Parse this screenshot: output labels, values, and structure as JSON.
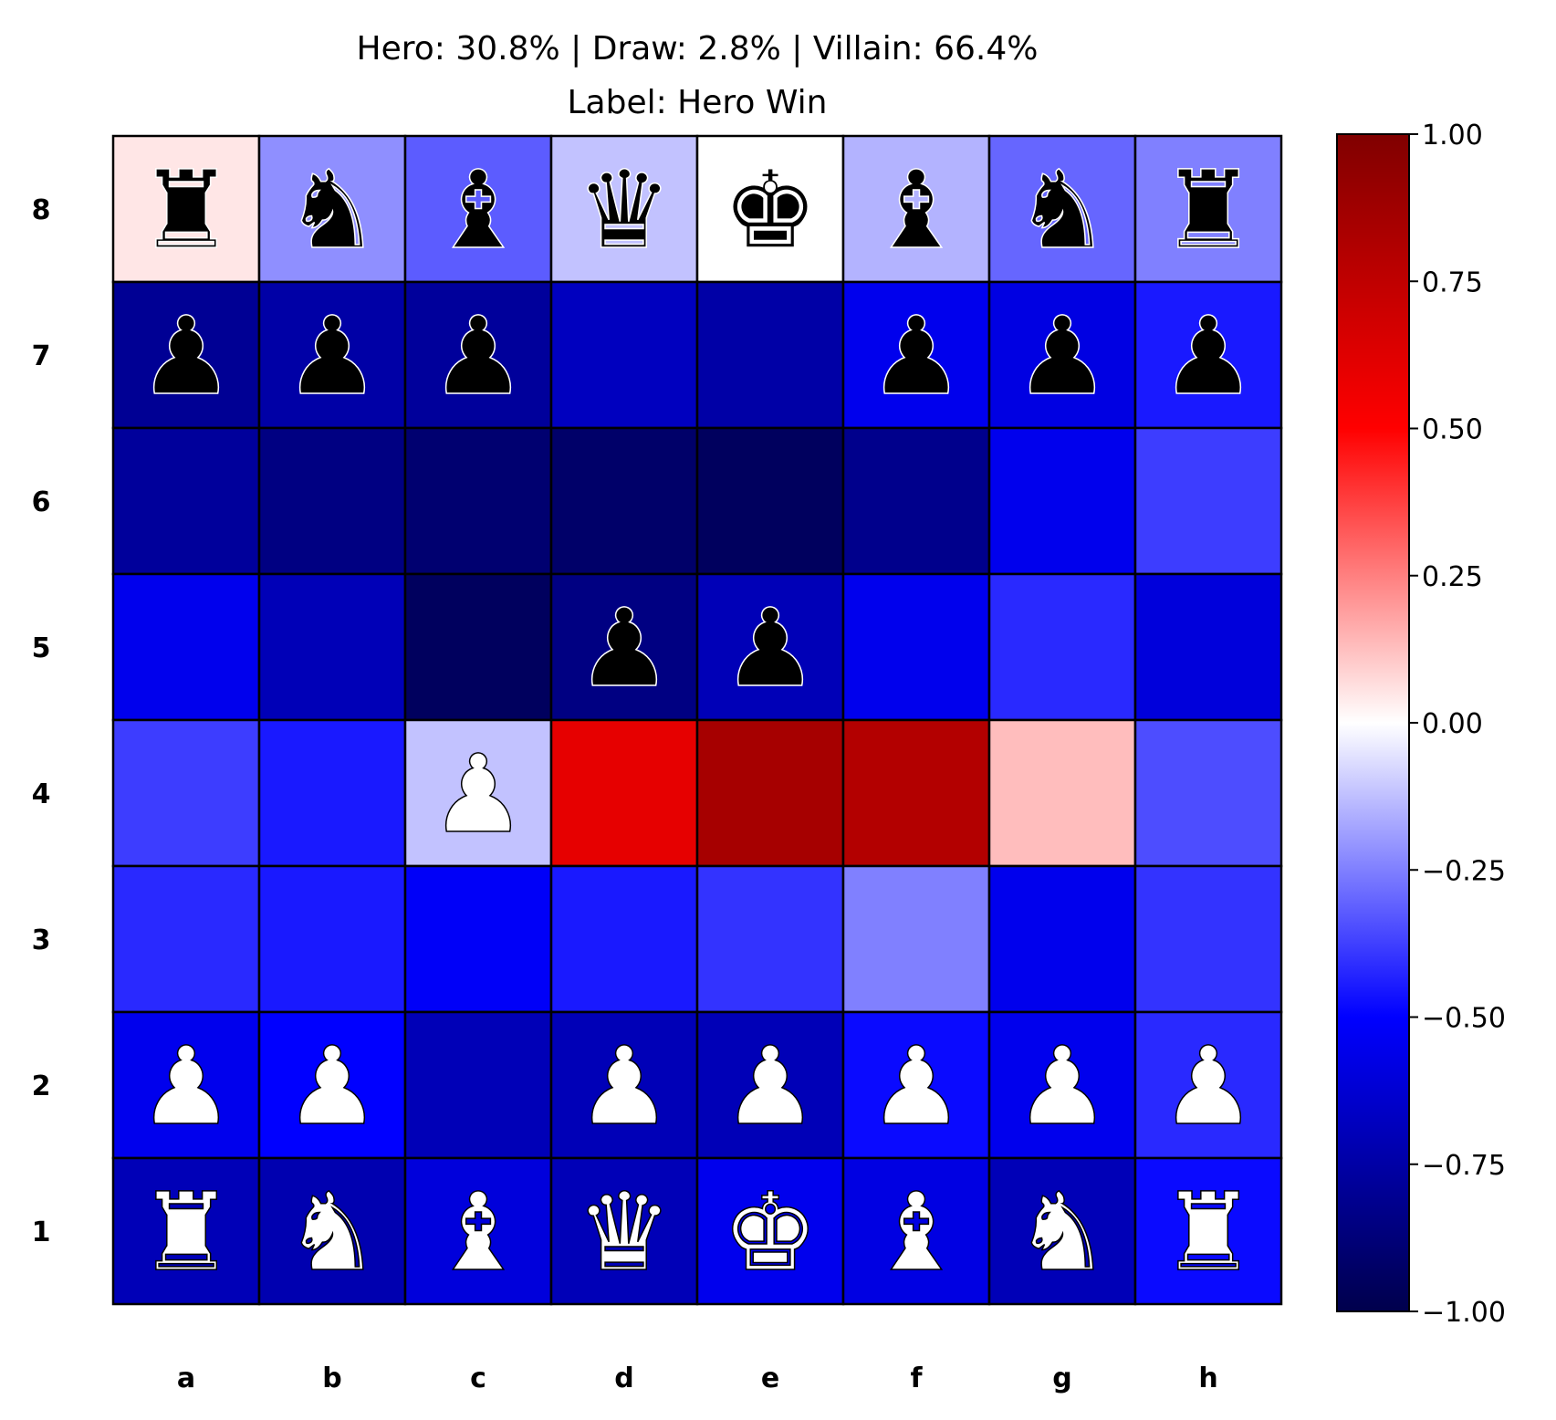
{
  "chart_data": {
    "type": "heatmap",
    "title": "Hero: 30.8% | Draw: 2.8% | Villain: 66.4%",
    "subtitle": "Label: Hero Win",
    "files": [
      "a",
      "b",
      "c",
      "d",
      "e",
      "f",
      "g",
      "h"
    ],
    "ranks": [
      "8",
      "7",
      "6",
      "5",
      "4",
      "3",
      "2",
      "1"
    ],
    "values": [
      [
        0.05,
        -0.22,
        -0.32,
        -0.12,
        0.0,
        -0.15,
        -0.3,
        -0.25
      ],
      [
        -0.8,
        -0.75,
        -0.78,
        -0.68,
        -0.75,
        -0.55,
        -0.58,
        -0.45
      ],
      [
        -0.78,
        -0.85,
        -0.9,
        -0.92,
        -0.95,
        -0.82,
        -0.55,
        -0.38
      ],
      [
        -0.55,
        -0.7,
        -0.95,
        -0.85,
        -0.7,
        -0.55,
        -0.42,
        -0.6
      ],
      [
        -0.38,
        -0.45,
        -0.12,
        0.6,
        0.85,
        0.8,
        0.13,
        -0.35
      ],
      [
        -0.42,
        -0.45,
        -0.52,
        -0.45,
        -0.4,
        -0.25,
        -0.55,
        -0.4
      ],
      [
        -0.55,
        -0.5,
        -0.7,
        -0.7,
        -0.7,
        -0.48,
        -0.55,
        -0.42
      ],
      [
        -0.7,
        -0.72,
        -0.6,
        -0.7,
        -0.55,
        -0.58,
        -0.7,
        -0.48
      ]
    ],
    "pieces": [
      [
        "r",
        "n",
        "b",
        "q",
        "k",
        "b",
        "n",
        "r"
      ],
      [
        "p",
        "p",
        "p",
        "",
        "",
        "p",
        "p",
        "p"
      ],
      [
        "",
        "",
        "",
        "",
        "",
        "",
        "",
        ""
      ],
      [
        "",
        "",
        "",
        "p",
        "p",
        "",
        "",
        ""
      ],
      [
        "",
        "",
        "P",
        "",
        "",
        "",
        "",
        ""
      ],
      [
        "",
        "",
        "",
        "",
        "",
        "",
        "",
        ""
      ],
      [
        "P",
        "P",
        "",
        "P",
        "P",
        "P",
        "P",
        "P"
      ],
      [
        "R",
        "N",
        "B",
        "Q",
        "K",
        "B",
        "N",
        "R"
      ]
    ],
    "colorbar": {
      "range": [
        -1.0,
        1.0
      ],
      "ticks": [
        "1.00",
        "0.75",
        "0.50",
        "0.25",
        "0.00",
        "−0.25",
        "−0.50",
        "−0.75",
        "−1.00"
      ],
      "colormap": "seismic"
    }
  }
}
